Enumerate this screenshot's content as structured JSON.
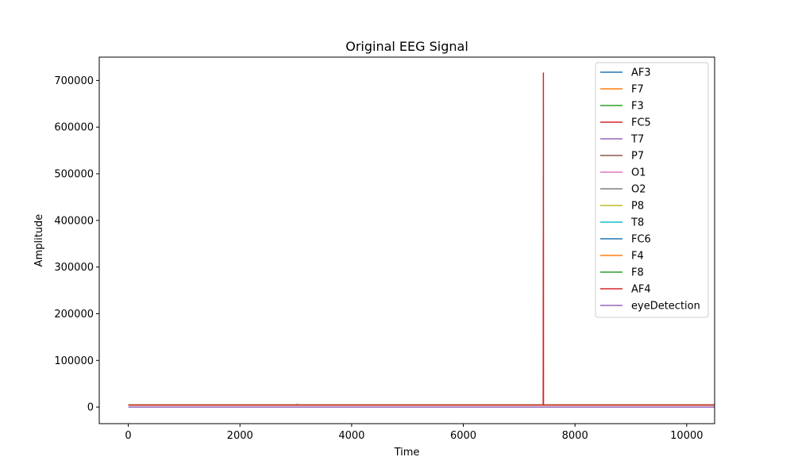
{
  "chart_data": {
    "type": "line",
    "title": "Original EEG Signal",
    "xlabel": "Time",
    "ylabel": "Amplitude",
    "xlim": [
      -520,
      10500
    ],
    "ylim": [
      -35500,
      750000
    ],
    "xticks": [
      0,
      2000,
      4000,
      6000,
      8000,
      10000
    ],
    "yticks": [
      0,
      100000,
      200000,
      300000,
      400000,
      500000,
      600000,
      700000
    ],
    "grid": false,
    "legend_position": "upper right",
    "series": [
      {
        "name": "AF3",
        "color": "#1f77b4",
        "x": [
          0,
          10499
        ],
        "y": [
          4295,
          4295
        ]
      },
      {
        "name": "F7",
        "color": "#ff7f0e",
        "x": [
          0,
          3020,
          3025,
          3030,
          10499
        ],
        "y": [
          4010,
          4010,
          6500,
          4010,
          4010
        ]
      },
      {
        "name": "F3",
        "color": "#2ca02c",
        "x": [
          0,
          10499
        ],
        "y": [
          4265,
          4265
        ]
      },
      {
        "name": "FC5",
        "color": "#d62728",
        "x": [
          0,
          10499
        ],
        "y": [
          4120,
          4120
        ]
      },
      {
        "name": "T7",
        "color": "#9467bd",
        "x": [
          0,
          10499
        ],
        "y": [
          4340,
          4340
        ]
      },
      {
        "name": "P7",
        "color": "#8c564b",
        "x": [
          0,
          10499
        ],
        "y": [
          4645,
          4645
        ]
      },
      {
        "name": "O1",
        "color": "#e377c2",
        "x": [
          0,
          10499
        ],
        "y": [
          4070,
          4070
        ]
      },
      {
        "name": "O2",
        "color": "#7f7f7f",
        "x": [
          0,
          10499
        ],
        "y": [
          4615,
          4615
        ]
      },
      {
        "name": "P8",
        "color": "#bcbd22",
        "x": [
          0,
          10499
        ],
        "y": [
          4200,
          4200
        ]
      },
      {
        "name": "T8",
        "color": "#17becf",
        "x": [
          0,
          10499
        ],
        "y": [
          4230,
          4230
        ]
      },
      {
        "name": "FC6",
        "color": "#1f77b4",
        "x": [
          0,
          10499
        ],
        "y": [
          4200,
          4200
        ]
      },
      {
        "name": "F4",
        "color": "#ff7f0e",
        "x": [
          0,
          10499
        ],
        "y": [
          4280,
          4280
        ]
      },
      {
        "name": "F8",
        "color": "#2ca02c",
        "x": [
          0,
          10499
        ],
        "y": [
          4610,
          4610
        ]
      },
      {
        "name": "AF4",
        "color": "#d62728",
        "x": [
          0,
          7430,
          7432,
          7433,
          7434,
          7436,
          10499
        ],
        "y": [
          4415,
          4415,
          360000,
          4415,
          715900,
          4415,
          4415
        ]
      },
      {
        "name": "eyeDetection",
        "color": "#9467bd",
        "x": [
          0,
          10499
        ],
        "y": [
          0,
          0
        ]
      }
    ]
  }
}
